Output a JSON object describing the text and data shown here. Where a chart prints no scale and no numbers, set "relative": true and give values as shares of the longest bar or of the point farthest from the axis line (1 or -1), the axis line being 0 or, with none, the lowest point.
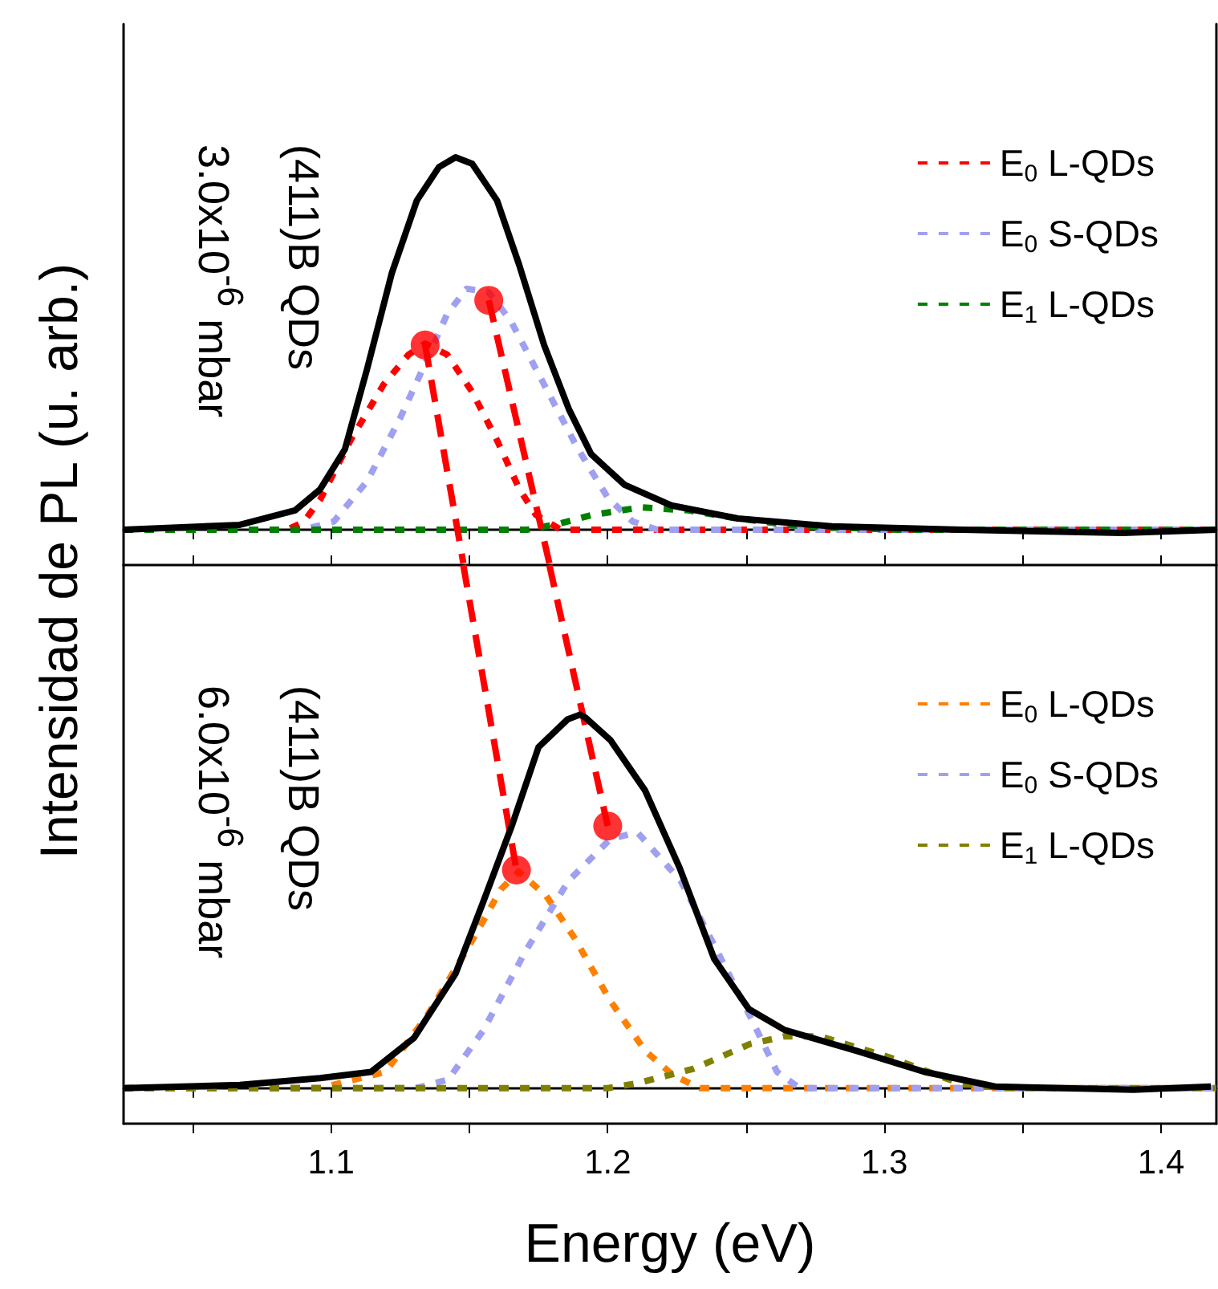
{
  "chart_data": [
    {
      "type": "line",
      "ylabel": "Intensidad de PL (u. arb.)",
      "annotations": [
        "(411)B QDs",
        "3.0x10$^{-6}$ mbar"
      ],
      "relative": true,
      "legend": "top right",
      "tick_labels": false,
      "xlim": [
        1.025,
        1.42
      ],
      "xticks": [
        {
          "value": 1.05,
          "label": null
        },
        {
          "value": 1.1,
          "label": null
        },
        {
          "value": 1.15,
          "label": null
        },
        {
          "value": 1.2,
          "label": null
        },
        {
          "value": 1.25,
          "label": null
        },
        {
          "value": 1.3,
          "label": null
        },
        {
          "value": 1.35,
          "label": null
        },
        {
          "value": 1.4,
          "label": null
        }
      ],
      "series": [
        {
          "color": "#000000",
          "line_style": "solid",
          "x": [
            1.025,
            1.067,
            1.087,
            1.096,
            1.105,
            1.113,
            1.122,
            1.131,
            1.139,
            1.145,
            1.151,
            1.16,
            1.168,
            1.177,
            1.186,
            1.194,
            1.206,
            1.223,
            1.247,
            1.281,
            1.328,
            1.386,
            1.42
          ],
          "values": [
            0,
            0.013,
            0.052,
            0.108,
            0.216,
            0.431,
            0.69,
            0.884,
            0.974,
            1,
            0.983,
            0.884,
            0.711,
            0.496,
            0.323,
            0.203,
            0.121,
            0.065,
            0.03,
            0.009,
            0,
            -0.009,
            0
          ]
        },
        {
          "name": "E$_{0}$ L-QDs",
          "color": "#ff0000",
          "line_style": "dotted",
          "x": [
            1.025,
            1.084,
            1.09,
            1.096,
            1.107,
            1.119,
            1.128,
            1.134,
            1.142,
            1.151,
            1.16,
            1.168,
            1.174,
            1.183,
            1.27,
            1.42
          ],
          "values": [
            0,
            0,
            0.02,
            0.08,
            0.24,
            0.39,
            0.47,
            0.5,
            0.47,
            0.37,
            0.24,
            0.11,
            0.04,
            0,
            0,
            0
          ]
        },
        {
          "name": "E$_{0}$ S-QDs",
          "color": "#a0a0f0",
          "line_style": "dotted",
          "x": [
            1.025,
            1.09,
            1.101,
            1.113,
            1.125,
            1.133,
            1.142,
            1.149,
            1.157,
            1.165,
            1.177,
            1.189,
            1.2,
            1.209,
            1.218,
            1.42
          ],
          "values": [
            0,
            0,
            0.022,
            0.13,
            0.3,
            0.43,
            0.58,
            0.647,
            0.638,
            0.56,
            0.39,
            0.22,
            0.086,
            0.022,
            0,
            0
          ]
        },
        {
          "name": "E$_{1}$ L-QDs",
          "color": "#008000",
          "line_style": "dotted",
          "x": [
            1.025,
            1.171,
            1.183,
            1.194,
            1.212,
            1.229,
            1.247,
            1.27,
            1.305,
            1.42
          ],
          "values": [
            0,
            0,
            0.017,
            0.039,
            0.06,
            0.052,
            0.03,
            0.009,
            0,
            0
          ]
        },
        {
          "type": "line",
          "color": "#ff0000",
          "line_style": "dashed",
          "x": [
            1.134,
            1.1478
          ],
          "values": [
            0.496,
            -0.09
          ]
        },
        {
          "type": "line",
          "color": "#ff0000",
          "line_style": "dashed",
          "x": [
            1.157,
            1.1789
          ],
          "values": [
            0.616,
            -0.09
          ]
        },
        {
          "type": "scatter",
          "color": "#ff0000",
          "marker": "circle",
          "x": [
            1.134,
            1.157
          ],
          "values": [
            0.496,
            0.616
          ]
        }
      ]
    },
    {
      "type": "line",
      "xlabel": "Energy (eV)",
      "annotations": [
        "(411)B QDs",
        "6.0x10$^{-6}$ mbar"
      ],
      "relative": true,
      "legend": "top right",
      "tick_labels": "x",
      "xlim": [
        1.025,
        1.42
      ],
      "xticks": [
        {
          "value": 1.05,
          "label": null
        },
        1.1,
        {
          "value": 1.15,
          "label": null
        },
        1.2,
        {
          "value": 1.25,
          "label": null
        },
        1.3,
        {
          "value": 1.35,
          "label": null
        },
        1.4
      ],
      "series": [
        {
          "color": "#000000",
          "line_style": "solid",
          "x": [
            1.025,
            1.067,
            1.096,
            1.1145,
            1.13,
            1.145,
            1.155,
            1.1655,
            1.175,
            1.1855,
            1.19,
            1.192,
            1.201,
            1.2135,
            1.226,
            1.2385,
            1.251,
            1.264,
            1.29,
            1.3145,
            1.34,
            1.39,
            1.418
          ],
          "values": [
            0,
            0.006,
            0.019,
            0.031,
            0.096,
            0.219,
            0.356,
            0.504,
            0.652,
            0.705,
            0.714,
            0.708,
            0.665,
            0.569,
            0.421,
            0.247,
            0.151,
            0.111,
            0.071,
            0.031,
            0.003,
            -0.003,
            0.003
          ]
        },
        {
          "name": "E$_{0}$ L-QDs",
          "color": "#ff8000",
          "line_style": "dotted",
          "x": [
            1.025,
            1.096,
            1.1197,
            1.1348,
            1.1499,
            1.1614,
            1.1678,
            1.1777,
            1.1881,
            1.2009,
            1.2136,
            1.2235,
            1.2333,
            1.42
          ],
          "values": [
            0,
            0,
            0.031,
            0.139,
            0.272,
            0.38,
            0.414,
            0.368,
            0.286,
            0.167,
            0.071,
            0.025,
            0,
            0
          ]
        },
        {
          "name": "E$_{0}$ S-QDs",
          "color": "#a0a0f0",
          "line_style": "dotted",
          "x": [
            1.025,
            1.1307,
            1.1423,
            1.1551,
            1.1701,
            1.1858,
            1.2009,
            1.2107,
            1.2264,
            1.2386,
            1.2513,
            1.2612,
            1.2693,
            1.42
          ],
          "values": [
            0,
            0,
            0.016,
            0.111,
            0.26,
            0.396,
            0.476,
            0.489,
            0.396,
            0.272,
            0.139,
            0.031,
            0,
            0
          ]
        },
        {
          "name": "E$_{1}$ L-QDs",
          "color": "#808000",
          "line_style": "dotted",
          "x": [
            1.025,
            1.2,
            1.2107,
            1.231,
            1.2513,
            1.264,
            1.2768,
            1.3017,
            1.3272,
            1.3423,
            1.42
          ],
          "values": [
            0,
            0,
            0.009,
            0.037,
            0.084,
            0.099,
            0.099,
            0.059,
            0.009,
            0,
            0
          ]
        },
        {
          "type": "line",
          "color": "#ff0000",
          "line_style": "dashed",
          "x": [
            1.1478,
            1.167
          ],
          "values": [
            1,
            0.417
          ]
        },
        {
          "type": "line",
          "color": "#ff0000",
          "line_style": "dashed",
          "x": [
            1.1789,
            1.2
          ],
          "values": [
            1,
            0.501
          ]
        },
        {
          "type": "scatter",
          "color": "#ff0000",
          "marker": "circle",
          "x": [
            1.167,
            1.2
          ],
          "values": [
            0.417,
            0.501
          ]
        }
      ]
    }
  ]
}
